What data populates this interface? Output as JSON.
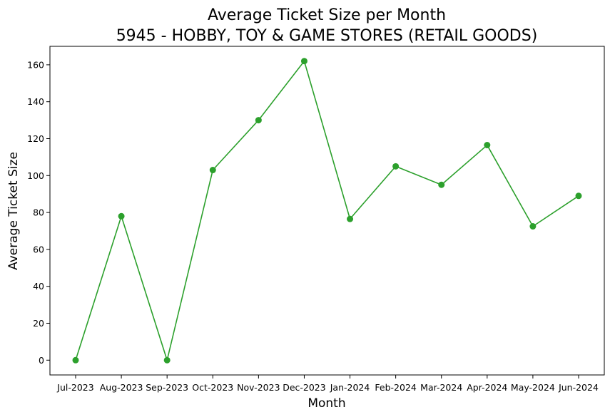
{
  "chart_data": {
    "type": "line",
    "title": "Average Ticket Size per Month",
    "subtitle": "5945 - HOBBY, TOY & GAME STORES (RETAIL GOODS)",
    "xlabel": "Month",
    "ylabel": "Average Ticket Size",
    "categories": [
      "Jul-2023",
      "Aug-2023",
      "Sep-2023",
      "Oct-2023",
      "Nov-2023",
      "Dec-2023",
      "Jan-2024",
      "Feb-2024",
      "Mar-2024",
      "Apr-2024",
      "May-2024",
      "Jun-2024"
    ],
    "series": [
      {
        "color": "#2ca02c",
        "marker": "circle",
        "values": [
          0,
          78,
          0,
          103,
          130,
          162,
          76.5,
          105,
          95,
          116.5,
          72.5,
          89
        ]
      }
    ],
    "ylim": [
      -8,
      170
    ],
    "yticks": [
      0,
      20,
      40,
      60,
      80,
      100,
      120,
      140,
      160
    ],
    "grid": false,
    "legend": "none"
  }
}
